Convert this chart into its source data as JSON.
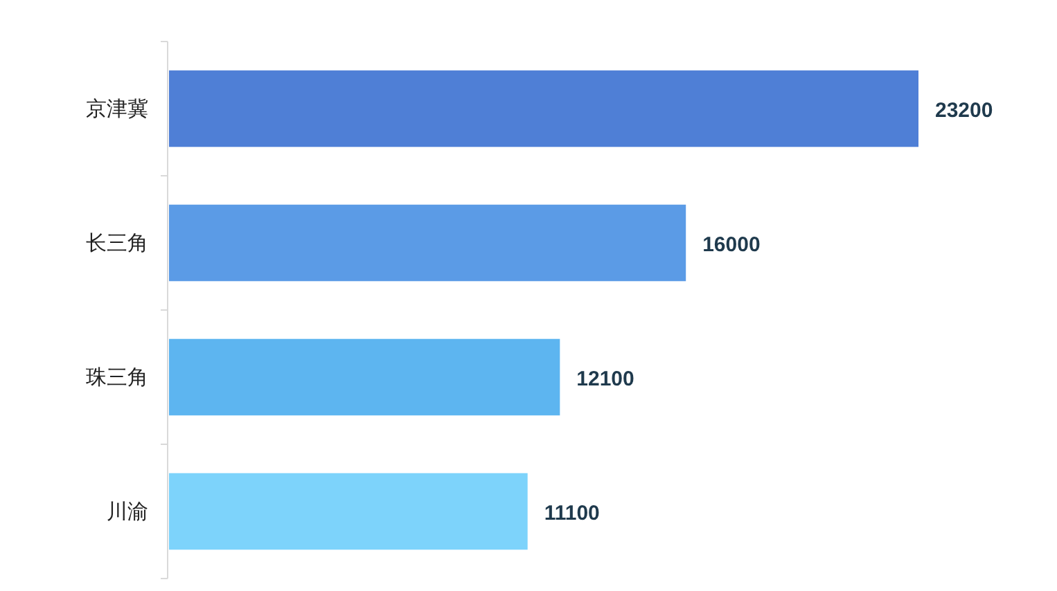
{
  "chart_data": {
    "type": "bar",
    "orientation": "horizontal",
    "categories": [
      "京津冀",
      "长三角",
      "珠三角",
      "川渝"
    ],
    "values": [
      23200,
      16000,
      12100,
      11100
    ],
    "colors": [
      "#4f7fd6",
      "#5b9be6",
      "#5db5f0",
      "#7dd3fb"
    ],
    "data_labels": true
  }
}
